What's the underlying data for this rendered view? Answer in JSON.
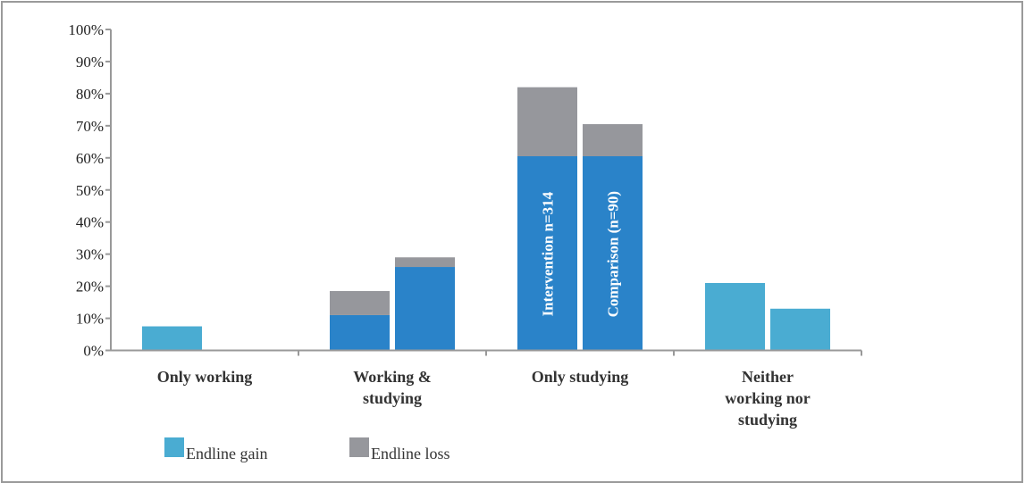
{
  "chart_data": {
    "type": "bar",
    "stacked": true,
    "categories": [
      "Only working",
      "Working & studying",
      "Only studying",
      "Neither working nor studying"
    ],
    "category_lines": [
      [
        "Only working"
      ],
      [
        "Working &",
        "studying"
      ],
      [
        "Only studying"
      ],
      [
        "Neither",
        "working nor",
        "studying"
      ]
    ],
    "groups": [
      "Intervention n=314",
      "Comparison (n=90)"
    ],
    "series": [
      {
        "name": "Endline gain",
        "kind": "gain",
        "values": {
          "Intervention n=314": [
            7.5,
            0,
            0,
            21
          ],
          "Comparison (n=90)": [
            0,
            0,
            0,
            13
          ]
        }
      },
      {
        "name": "",
        "kind": "base",
        "values": {
          "Intervention n=314": [
            0,
            11,
            60.5,
            0
          ],
          "Comparison (n=90)": [
            0,
            26,
            60.5,
            0
          ]
        }
      },
      {
        "name": "Endline loss",
        "kind": "loss",
        "values": {
          "Intervention n=314": [
            0,
            7.5,
            21.5,
            0
          ],
          "Comparison (n=90)": [
            0,
            3,
            10,
            0
          ]
        }
      }
    ],
    "ylim": [
      0,
      100
    ],
    "yticks": [
      "0%",
      "10%",
      "20%",
      "30%",
      "40%",
      "50%",
      "60%",
      "70%",
      "80%",
      "90%",
      "100%"
    ],
    "bar_text": {
      "category_index": 2,
      "labels": [
        "Intervention n=314",
        "Comparison (n=90)"
      ]
    },
    "legend": {
      "placement": "bottom-left",
      "entries": [
        "Endline gain",
        "Endline loss"
      ]
    },
    "grid": false,
    "colors": {
      "gain": "#4aacd2",
      "base": "#2a83c9",
      "loss": "#96979c",
      "axis": "#999999"
    }
  }
}
